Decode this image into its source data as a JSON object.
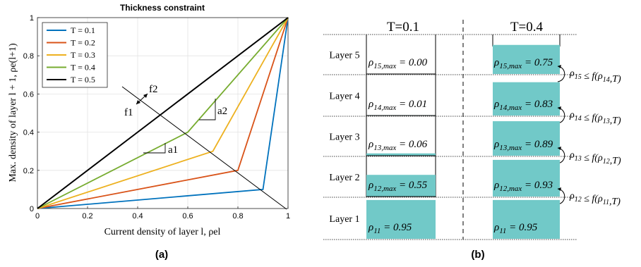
{
  "chart_data": {
    "type": "line",
    "title": "Thickness constraint",
    "xlabel": "Current density of layer l, ρel",
    "ylabel": "Max. density of layer l + 1, ρe(l+1)",
    "xlim": [
      0,
      1
    ],
    "ylim": [
      0,
      1
    ],
    "xticks": [
      "0",
      "0.2",
      "0.4",
      "0.6",
      "0.8",
      "1"
    ],
    "yticks": [
      "0",
      "0.2",
      "0.4",
      "0.6",
      "0.8",
      "1"
    ],
    "grid": true,
    "legend_position": "top-left",
    "series": [
      {
        "name": "T = 0.1",
        "color": "#0072BD",
        "x": [
          0,
          0.9,
          1
        ],
        "y": [
          0,
          0.1,
          1
        ]
      },
      {
        "name": "T = 0.2",
        "color": "#D95319",
        "x": [
          0,
          0.8,
          1
        ],
        "y": [
          0,
          0.2,
          1
        ]
      },
      {
        "name": "T = 0.3",
        "color": "#EDB120",
        "x": [
          0,
          0.7,
          1
        ],
        "y": [
          0,
          0.3,
          1
        ]
      },
      {
        "name": "T = 0.4",
        "color": "#77AC30",
        "x": [
          0,
          0.6,
          1
        ],
        "y": [
          0,
          0.4,
          1
        ]
      },
      {
        "name": "T = 0.5",
        "color": "#000000",
        "x": [
          0,
          0.5,
          1
        ],
        "y": [
          0,
          0.5,
          1
        ]
      }
    ],
    "annotations": {
      "f2": "f2",
      "f1": "f1",
      "a1": "a1",
      "a2": "a2"
    },
    "caption": "(a)"
  },
  "panel_b": {
    "caption": "(b)",
    "columns": [
      "T=0.1",
      "T=0.4"
    ],
    "layers": [
      {
        "label": "Layer 5",
        "left": "ρ15,max = 0.00",
        "left_fill": 0.0,
        "right": "ρ15,max = 0.75",
        "right_fill": 0.75,
        "constraint": "ρ15 ≤ f(ρ14,T)"
      },
      {
        "label": "Layer 4",
        "left": "ρ14,max = 0.01",
        "left_fill": 0.01,
        "right": "ρ14,max = 0.83",
        "right_fill": 0.83,
        "constraint": "ρ14 ≤ f(ρ13,T)"
      },
      {
        "label": "Layer 3",
        "left": "ρ13,max = 0.06",
        "left_fill": 0.06,
        "right": "ρ13,max = 0.89",
        "right_fill": 0.89,
        "constraint": "ρ13 ≤ f(ρ12,T)"
      },
      {
        "label": "Layer 2",
        "left": "ρ12,max = 0.55",
        "left_fill": 0.55,
        "right": "ρ12,max = 0.93",
        "right_fill": 0.93,
        "constraint": "ρ12 ≤ f(ρ11,T)"
      },
      {
        "label": "Layer 1",
        "left": "ρ11 = 0.95",
        "left_fill": 0.95,
        "right": "ρ11 = 0.95",
        "right_fill": 0.95,
        "constraint": ""
      }
    ],
    "fill_color": "#71C9C8"
  }
}
